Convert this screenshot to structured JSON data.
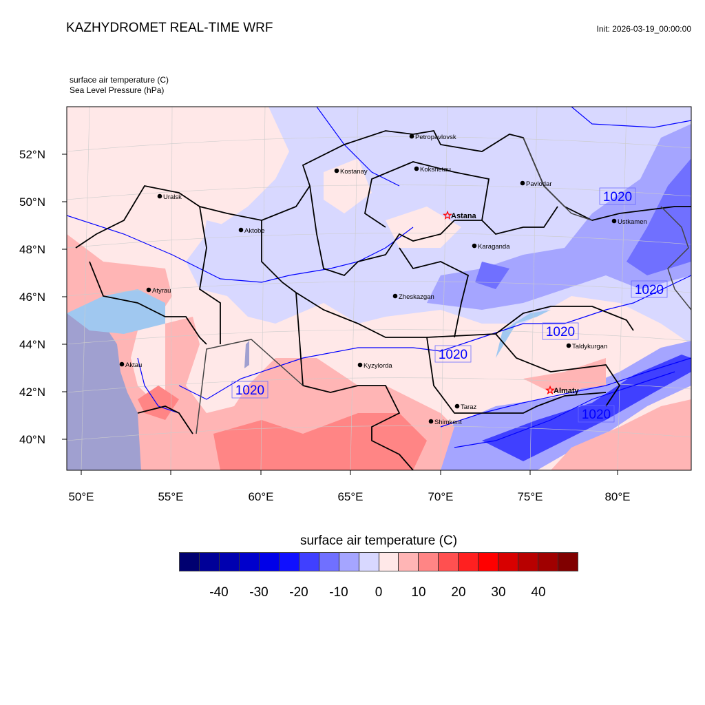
{
  "header": {
    "title": "KAZHYDROMET REAL-TIME WRF",
    "init": "Init: 2026-03-19_00:00:00",
    "field1": "surface air temperature   (C)",
    "field2": "Sea Level Pressure   (hPa)"
  },
  "axes": {
    "lat_labels": [
      "52°N",
      "50°N",
      "48°N",
      "46°N",
      "44°N",
      "42°N",
      "40°N"
    ],
    "lon_labels": [
      "50°E",
      "55°E",
      "60°E",
      "65°E",
      "70°E",
      "75°E",
      "80°E"
    ]
  },
  "cities": [
    {
      "name": "Petropavlovsk",
      "marker": "dot"
    },
    {
      "name": "Kostanay",
      "marker": "dot"
    },
    {
      "name": "Kokshetau",
      "marker": "dot"
    },
    {
      "name": "Pavlodar",
      "marker": "dot"
    },
    {
      "name": "Uralsk",
      "marker": "dot"
    },
    {
      "name": "Astana",
      "marker": "star"
    },
    {
      "name": "Ustkamen",
      "marker": "dot"
    },
    {
      "name": "Aktobe",
      "marker": "dot"
    },
    {
      "name": "Karaganda",
      "marker": "dot"
    },
    {
      "name": "Atyrau",
      "marker": "dot"
    },
    {
      "name": "Zheskazgan",
      "marker": "dot"
    },
    {
      "name": "Taldykurgan",
      "marker": "dot"
    },
    {
      "name": "Kyzylorda",
      "marker": "dot"
    },
    {
      "name": "Aktau",
      "marker": "dot"
    },
    {
      "name": "Almaty",
      "marker": "star"
    },
    {
      "name": "Taraz",
      "marker": "dot"
    },
    {
      "name": "Shimkent",
      "marker": "dot"
    }
  ],
  "isobar_labels": [
    "1020",
    "1020",
    "1020",
    "1020",
    "1020",
    "1020"
  ],
  "colorbar": {
    "title": "surface air temperature  (C)",
    "tick_labels": [
      "-40",
      "-30",
      "-20",
      "-10",
      "0",
      "10",
      "20",
      "30",
      "40"
    ],
    "colors": [
      "#000070",
      "#000098",
      "#0000b0",
      "#0000cc",
      "#0000e8",
      "#1010ff",
      "#4040ff",
      "#7070ff",
      "#a5a5ff",
      "#d8d8ff",
      "#ffe8e8",
      "#ffb5b5",
      "#ff8585",
      "#ff5050",
      "#ff2020",
      "#ff0000",
      "#d80000",
      "#b80000",
      "#a00000",
      "#800000"
    ]
  },
  "colors": {
    "isobar": "#0000ff",
    "border": "#000000",
    "star": "#ff0000",
    "water": "#a0c8f0",
    "sea": "#a0a0d0"
  }
}
